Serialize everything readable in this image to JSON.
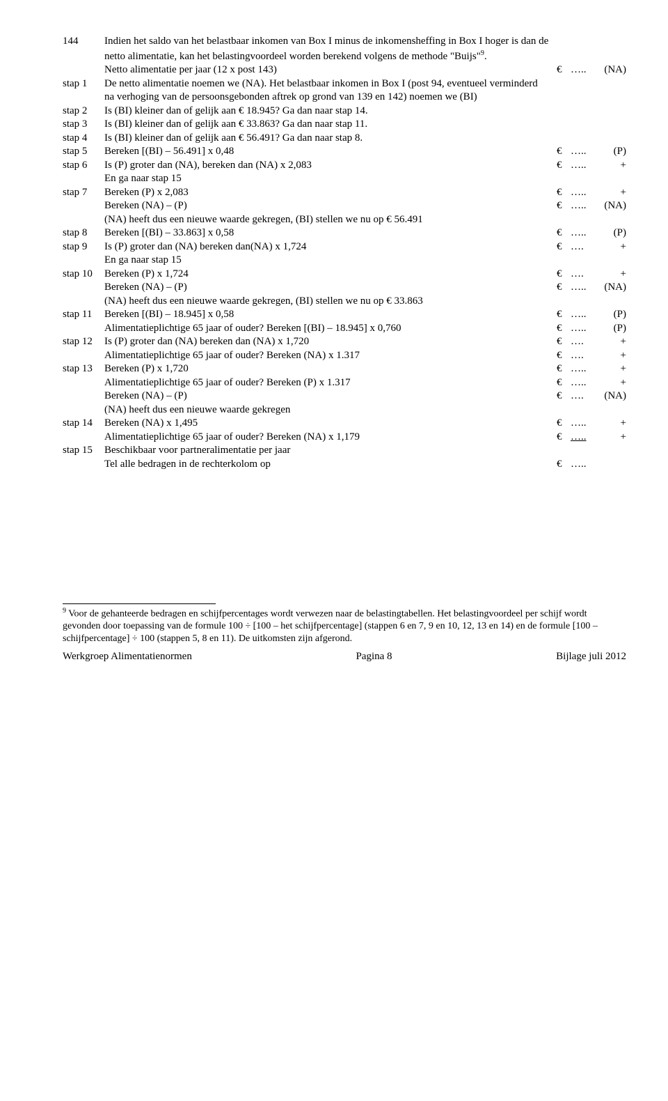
{
  "rows": [
    {
      "label": "144",
      "desc": "Indien het saldo van het belastbaar inkomen van Box I minus de inkomensheffing in Box I hoger is dan de netto alimentatie, kan het belastingvoordeel worden berekend volgens de methode \"Buijs\"",
      "sup": "9",
      "desc2": ".",
      "euro": "",
      "dots": "",
      "note": ""
    },
    {
      "label": "",
      "desc": "Netto alimentatie per jaar (12 x post 143)",
      "euro": "€",
      "dots": "…..",
      "note": "(NA)"
    },
    {
      "label": "stap 1",
      "desc": "De netto alimentatie noemen we (NA). Het belastbaar inkomen in Box I (post 94, eventueel verminderd na verhoging van de persoonsgebonden aftrek op grond van 139 en 142) noemen we (BI)",
      "euro": "",
      "dots": "",
      "note": ""
    },
    {
      "label": "stap 2",
      "desc": "Is (BI) kleiner dan of gelijk aan € 18.945? Ga dan naar stap 14.",
      "euro": "",
      "dots": "",
      "note": ""
    },
    {
      "label": "stap 3",
      "desc": "Is (BI) kleiner dan of gelijk aan € 33.863? Ga dan naar stap 11.",
      "euro": "",
      "dots": "",
      "note": ""
    },
    {
      "label": "stap 4",
      "desc": "Is (BI) kleiner dan of gelijk aan € 56.491? Ga dan naar stap 8.",
      "euro": "",
      "dots": "",
      "note": ""
    },
    {
      "label": "stap 5",
      "desc": "Bereken [(BI) – 56.491] x 0,48",
      "euro": "€",
      "dots": "…..",
      "note": "(P)"
    },
    {
      "label": "stap 6",
      "desc": "Is (P) groter dan (NA), bereken dan (NA) x 2,083",
      "euro": "€",
      "dots": "…..",
      "note": "+"
    },
    {
      "label": "",
      "desc": "En ga naar stap 15",
      "euro": "",
      "dots": "",
      "note": ""
    },
    {
      "label": "stap 7",
      "desc": "Bereken (P) x 2,083",
      "euro": "€",
      "dots": "…..",
      "note": "+"
    },
    {
      "label": "",
      "desc": "Bereken (NA) – (P)",
      "euro": "€",
      "dots": "…..",
      "note": "(NA)"
    },
    {
      "label": "",
      "desc": "(NA) heeft dus een nieuwe waarde gekregen, (BI) stellen we nu op € 56.491",
      "euro": "",
      "dots": "",
      "note": ""
    },
    {
      "label": "stap 8",
      "desc": "Bereken [(BI) – 33.863] x 0,58",
      "euro": "€",
      "dots": "…..",
      "note": "(P)"
    },
    {
      "label": "stap 9",
      "desc": "Is (P) groter dan (NA) bereken dan(NA) x 1,724",
      "euro": "€",
      "dots": "….",
      "note": "+"
    },
    {
      "label": "",
      "desc": "En ga naar stap 15",
      "euro": "",
      "dots": "",
      "note": ""
    },
    {
      "label": "stap 10",
      "desc": "Bereken (P) x 1,724",
      "euro": "€",
      "dots": "….",
      "note": "+"
    },
    {
      "label": "",
      "desc": "Bereken (NA) – (P)",
      "euro": "€",
      "dots": "…..",
      "note": "(NA)"
    },
    {
      "label": "",
      "desc": "(NA) heeft dus een nieuwe waarde gekregen, (BI) stellen we nu op € 33.863",
      "euro": "",
      "dots": "",
      "note": ""
    },
    {
      "label": "stap 11",
      "desc": "Bereken [(BI) – 18.945] x 0,58",
      "euro": "€",
      "dots": "…..",
      "note": "(P)"
    },
    {
      "label": "",
      "desc": "Alimentatieplichtige 65 jaar of ouder? Bereken [(BI) – 18.945] x 0,760",
      "euro": "€",
      "dots": "…..",
      "note": "(P)"
    },
    {
      "label": "stap 12",
      "desc": "Is (P) groter dan (NA) bereken dan (NA) x 1,720",
      "euro": "€",
      "dots": "….",
      "note": "+"
    },
    {
      "label": "",
      "desc": "Alimentatieplichtige 65 jaar of ouder? Bereken (NA) x 1.317",
      "euro": "€",
      "dots": "….",
      "note": "+"
    },
    {
      "label": "stap 13",
      "desc": "Bereken (P) x 1,720",
      "euro": "€",
      "dots": "…..",
      "note": "+"
    },
    {
      "label": "",
      "desc": "Alimentatieplichtige 65 jaar of ouder? Bereken (P) x 1.317",
      "euro": "€",
      "dots": "…..",
      "note": "+"
    },
    {
      "label": "",
      "desc": "Bereken (NA) – (P)",
      "euro": "€",
      "dots": "….",
      "note": "(NA)"
    },
    {
      "label": "",
      "desc": "(NA) heeft dus een nieuwe waarde gekregen",
      "euro": "",
      "dots": "",
      "note": ""
    },
    {
      "label": "stap 14",
      "desc": "Bereken (NA) x 1,495",
      "euro": "€",
      "dots": "…..",
      "note": "+"
    },
    {
      "label": "",
      "desc": "Alimentatieplichtige 65 jaar of ouder? Bereken (NA) x 1,179",
      "euro": "€",
      "dots": "…..",
      "note": "+",
      "underline": true
    },
    {
      "label": "stap 15",
      "desc": "Beschikbaar voor partneralimentatie per jaar",
      "euro": "",
      "dots": "",
      "note": ""
    },
    {
      "label": "",
      "desc": "Tel alle bedragen in de rechterkolom op",
      "euro": "€",
      "dots": "…..",
      "note": ""
    }
  ],
  "footnote": {
    "marker": "9",
    "text": " Voor de gehanteerde bedragen en schijfpercentages wordt verwezen naar de belastingtabellen. Het belastingvoordeel per schijf wordt gevonden door toepassing van de formule 100 ÷ [100 – het schijfpercentage] (stappen 6 en 7, 9 en 10, 12, 13 en 14) en de formule [100 – schijfpercentage] ÷ 100 (stappen 5, 8 en 11). De uitkomsten zijn afgerond."
  },
  "footer": {
    "left": "Werkgroep Alimentatienormen",
    "center": "Pagina 8",
    "right": "Bijlage juli 2012"
  }
}
